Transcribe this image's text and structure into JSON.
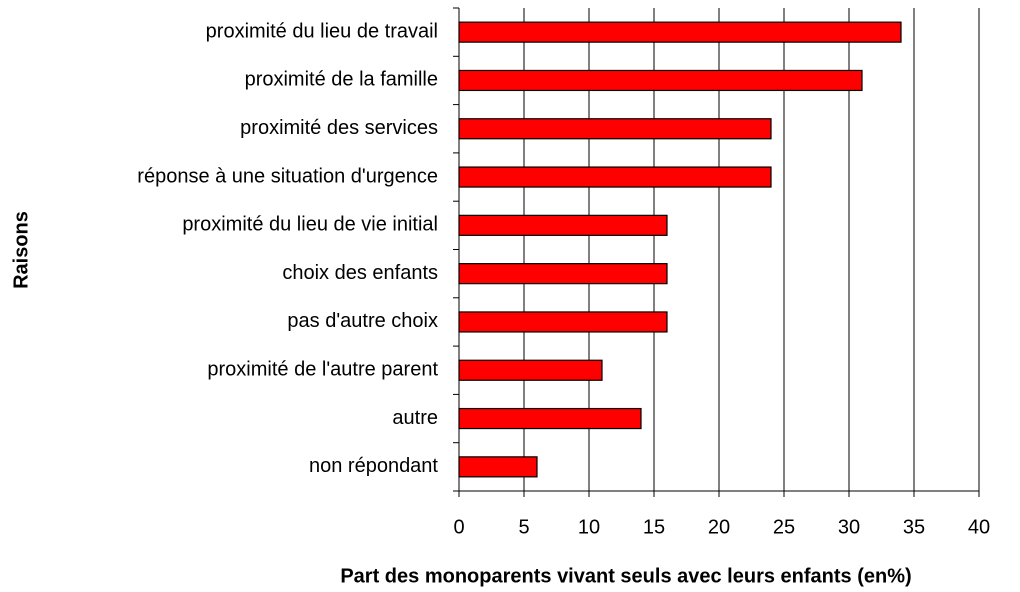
{
  "chart_data": {
    "type": "bar",
    "orientation": "horizontal",
    "x_label": "Part des monoparents vivant seuls avec leurs enfants (en%)",
    "y_label": "Raisons",
    "categories": [
      "proximité du lieu de travail",
      "proximité de la famille",
      "proximité des services",
      "réponse à une situation d'urgence",
      "proximité du lieu de vie initial",
      "choix des enfants",
      "pas d'autre choix",
      "proximité de l'autre parent",
      "autre",
      "non répondant"
    ],
    "values": [
      34,
      31,
      24,
      24,
      16,
      16,
      16,
      11,
      14,
      6
    ],
    "color": "#ff0000",
    "xlim": [
      0,
      40
    ],
    "xticks": [
      0,
      5,
      10,
      15,
      20,
      25,
      30,
      35,
      40
    ],
    "grid": true
  }
}
